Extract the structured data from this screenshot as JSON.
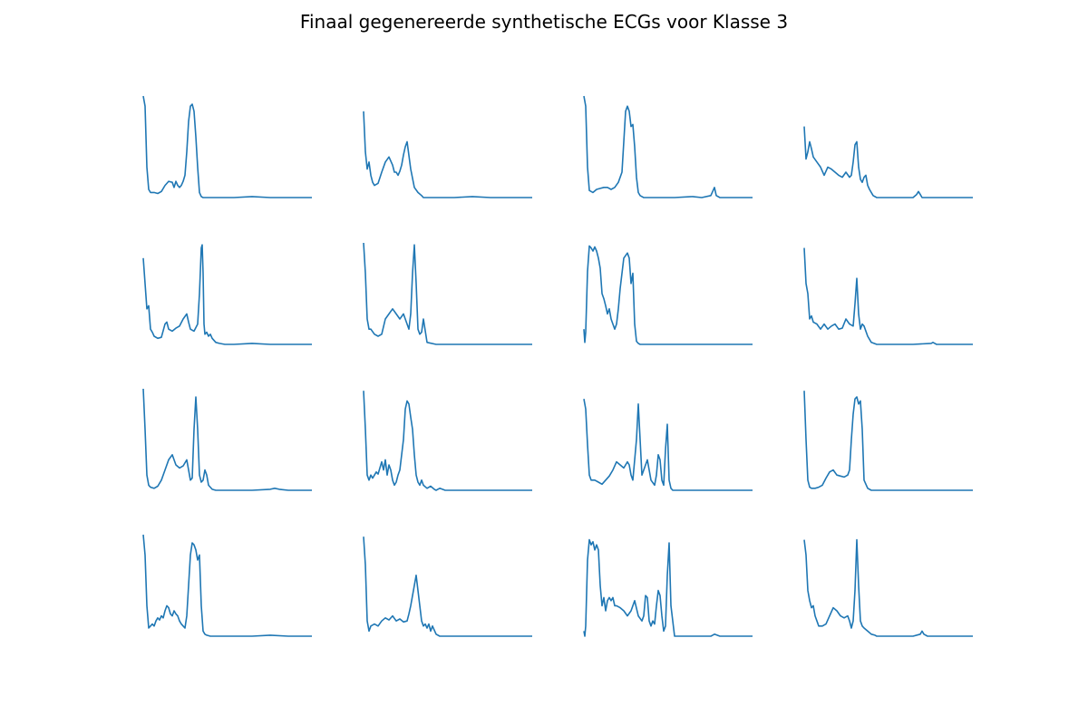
{
  "title": "Finaal gegenereerde synthetische ECGs voor Klasse 3",
  "line_color": "#1f77b4",
  "chart_data": {
    "type": "line",
    "title": "Finaal gegenereerde synthetische ECGs voor Klasse 3",
    "grid": false,
    "axes_visible": false,
    "rows": 4,
    "cols": 4,
    "ylim": [
      0,
      1
    ],
    "x_range": [
      0,
      186
    ],
    "panels": [
      {
        "x": [
          0,
          2,
          4,
          6,
          8,
          12,
          16,
          20,
          24,
          28,
          32,
          34,
          36,
          38,
          40,
          42,
          44,
          46,
          48,
          50,
          52,
          54,
          56,
          58,
          60,
          62,
          64,
          66,
          70,
          80,
          100,
          120,
          140,
          160,
          186
        ],
        "y": [
          1.0,
          0.9,
          0.3,
          0.08,
          0.05,
          0.05,
          0.04,
          0.06,
          0.12,
          0.16,
          0.15,
          0.1,
          0.16,
          0.12,
          0.1,
          0.12,
          0.16,
          0.22,
          0.45,
          0.75,
          0.9,
          0.92,
          0.85,
          0.6,
          0.3,
          0.05,
          0.01,
          0.0,
          0.0,
          0.0,
          0.0,
          0.01,
          0.0,
          0.0,
          0.0
        ]
      },
      {
        "x": [
          0,
          2,
          4,
          6,
          8,
          10,
          12,
          16,
          20,
          24,
          28,
          32,
          34,
          36,
          38,
          40,
          42,
          44,
          46,
          48,
          52,
          56,
          60,
          64,
          66,
          70,
          80,
          100,
          120,
          140,
          160,
          186
        ],
        "y": [
          0.85,
          0.45,
          0.28,
          0.35,
          0.22,
          0.15,
          0.12,
          0.14,
          0.25,
          0.35,
          0.4,
          0.32,
          0.25,
          0.25,
          0.22,
          0.26,
          0.32,
          0.42,
          0.5,
          0.55,
          0.28,
          0.1,
          0.05,
          0.02,
          0.0,
          0.0,
          0.0,
          0.0,
          0.01,
          0.0,
          0.0,
          0.0
        ]
      },
      {
        "x": [
          0,
          2,
          4,
          6,
          10,
          14,
          18,
          22,
          26,
          30,
          34,
          38,
          42,
          44,
          46,
          48,
          50,
          52,
          54,
          56,
          58,
          60,
          62,
          64,
          66,
          70,
          80,
          100,
          120,
          130,
          140,
          142,
          144,
          146,
          150,
          160,
          186
        ],
        "y": [
          1.0,
          0.9,
          0.3,
          0.07,
          0.05,
          0.08,
          0.09,
          0.1,
          0.1,
          0.08,
          0.1,
          0.15,
          0.25,
          0.55,
          0.85,
          0.9,
          0.85,
          0.7,
          0.72,
          0.5,
          0.2,
          0.05,
          0.02,
          0.01,
          0.0,
          0.0,
          0.0,
          0.0,
          0.01,
          0.0,
          0.02,
          0.06,
          0.1,
          0.02,
          0.0,
          0.0,
          0.0
        ]
      },
      {
        "x": [
          0,
          2,
          4,
          6,
          8,
          10,
          14,
          18,
          22,
          26,
          30,
          34,
          38,
          42,
          46,
          50,
          52,
          54,
          56,
          58,
          60,
          62,
          64,
          66,
          68,
          70,
          72,
          76,
          80,
          100,
          120,
          124,
          126,
          128,
          130,
          140,
          160,
          186
        ],
        "y": [
          0.7,
          0.38,
          0.45,
          0.55,
          0.48,
          0.4,
          0.35,
          0.3,
          0.22,
          0.3,
          0.28,
          0.25,
          0.22,
          0.2,
          0.25,
          0.2,
          0.22,
          0.35,
          0.52,
          0.55,
          0.3,
          0.18,
          0.15,
          0.2,
          0.22,
          0.12,
          0.08,
          0.02,
          0.0,
          0.0,
          0.0,
          0.03,
          0.06,
          0.03,
          0.0,
          0.0,
          0.0,
          0.0
        ]
      },
      {
        "x": [
          0,
          2,
          4,
          6,
          8,
          10,
          12,
          16,
          20,
          24,
          26,
          28,
          32,
          36,
          40,
          44,
          48,
          50,
          52,
          56,
          60,
          62,
          64,
          65,
          66,
          67,
          68,
          70,
          72,
          74,
          76,
          80,
          84,
          90,
          100,
          120,
          140,
          160,
          186
        ],
        "y": [
          0.85,
          0.6,
          0.35,
          0.38,
          0.15,
          0.12,
          0.08,
          0.06,
          0.07,
          0.2,
          0.22,
          0.15,
          0.13,
          0.16,
          0.18,
          0.25,
          0.3,
          0.22,
          0.15,
          0.13,
          0.2,
          0.5,
          0.95,
          0.98,
          0.7,
          0.2,
          0.1,
          0.12,
          0.08,
          0.1,
          0.06,
          0.02,
          0.01,
          0.0,
          0.0,
          0.01,
          0.0,
          0.0,
          0.0
        ]
      },
      {
        "x": [
          0,
          2,
          4,
          6,
          8,
          12,
          16,
          20,
          24,
          28,
          32,
          36,
          40,
          44,
          48,
          50,
          52,
          54,
          56,
          58,
          60,
          62,
          64,
          66,
          70,
          80,
          100,
          120,
          140,
          160,
          186
        ],
        "y": [
          1.0,
          0.7,
          0.25,
          0.15,
          0.15,
          0.1,
          0.08,
          0.1,
          0.25,
          0.3,
          0.35,
          0.3,
          0.25,
          0.3,
          0.2,
          0.15,
          0.3,
          0.7,
          0.98,
          0.6,
          0.15,
          0.1,
          0.12,
          0.25,
          0.02,
          0.0,
          0.0,
          0.0,
          0.0,
          0.0,
          0.0
        ]
      },
      {
        "x": [
          0,
          1,
          2,
          4,
          6,
          8,
          10,
          12,
          14,
          16,
          18,
          20,
          22,
          24,
          26,
          28,
          30,
          32,
          34,
          36,
          38,
          40,
          44,
          48,
          50,
          52,
          54,
          56,
          58,
          60,
          62,
          64,
          66,
          70,
          80,
          100,
          120,
          140,
          160,
          186
        ],
        "y": [
          0.15,
          0.02,
          0.12,
          0.72,
          0.97,
          0.95,
          0.92,
          0.96,
          0.92,
          0.85,
          0.75,
          0.5,
          0.45,
          0.38,
          0.3,
          0.35,
          0.25,
          0.2,
          0.15,
          0.2,
          0.35,
          0.55,
          0.85,
          0.9,
          0.85,
          0.6,
          0.7,
          0.2,
          0.03,
          0.01,
          0.0,
          0.0,
          0.0,
          0.0,
          0.0,
          0.0,
          0.0,
          0.0,
          0.0,
          0.0
        ]
      },
      {
        "x": [
          0,
          2,
          4,
          6,
          8,
          10,
          14,
          18,
          22,
          26,
          30,
          34,
          38,
          42,
          46,
          50,
          54,
          56,
          58,
          60,
          62,
          64,
          66,
          70,
          74,
          80,
          100,
          120,
          140,
          142,
          144,
          146,
          150,
          160,
          186
        ],
        "y": [
          0.95,
          0.6,
          0.5,
          0.25,
          0.28,
          0.22,
          0.2,
          0.15,
          0.2,
          0.15,
          0.18,
          0.2,
          0.15,
          0.16,
          0.25,
          0.2,
          0.18,
          0.4,
          0.65,
          0.3,
          0.15,
          0.2,
          0.18,
          0.08,
          0.02,
          0.0,
          0.0,
          0.0,
          0.01,
          0.02,
          0.01,
          0.0,
          0.0,
          0.0,
          0.0
        ]
      },
      {
        "x": [
          0,
          2,
          4,
          6,
          8,
          12,
          16,
          20,
          24,
          28,
          32,
          34,
          36,
          40,
          44,
          48,
          50,
          52,
          54,
          56,
          58,
          60,
          62,
          64,
          66,
          68,
          70,
          72,
          76,
          80,
          90,
          100,
          120,
          140,
          145,
          150,
          160,
          186
        ],
        "y": [
          1.0,
          0.6,
          0.15,
          0.05,
          0.03,
          0.02,
          0.04,
          0.1,
          0.2,
          0.3,
          0.35,
          0.3,
          0.25,
          0.22,
          0.24,
          0.3,
          0.2,
          0.1,
          0.12,
          0.6,
          0.92,
          0.6,
          0.15,
          0.08,
          0.1,
          0.2,
          0.15,
          0.05,
          0.01,
          0.0,
          0.0,
          0.0,
          0.0,
          0.01,
          0.02,
          0.01,
          0.0,
          0.0
        ]
      },
      {
        "x": [
          0,
          2,
          4,
          6,
          8,
          10,
          12,
          14,
          16,
          18,
          20,
          22,
          24,
          26,
          28,
          30,
          32,
          34,
          36,
          38,
          40,
          44,
          46,
          48,
          50,
          52,
          54,
          56,
          58,
          60,
          62,
          64,
          66,
          70,
          74,
          78,
          80,
          84,
          90,
          100,
          120,
          140,
          160,
          186
        ],
        "y": [
          0.98,
          0.6,
          0.15,
          0.1,
          0.15,
          0.12,
          0.15,
          0.18,
          0.16,
          0.22,
          0.28,
          0.2,
          0.3,
          0.15,
          0.25,
          0.2,
          0.1,
          0.05,
          0.08,
          0.15,
          0.2,
          0.5,
          0.8,
          0.88,
          0.85,
          0.72,
          0.6,
          0.35,
          0.15,
          0.08,
          0.05,
          0.1,
          0.05,
          0.02,
          0.04,
          0.01,
          0.0,
          0.02,
          0.0,
          0.0,
          0.0,
          0.0,
          0.0,
          0.0
        ]
      },
      {
        "x": [
          0,
          2,
          4,
          6,
          8,
          12,
          16,
          20,
          24,
          28,
          32,
          36,
          40,
          44,
          48,
          50,
          52,
          54,
          56,
          58,
          60,
          62,
          64,
          66,
          70,
          74,
          78,
          80,
          82,
          84,
          86,
          88,
          90,
          92,
          94,
          96,
          98,
          100,
          110,
          120,
          140,
          160,
          186
        ],
        "y": [
          0.9,
          0.8,
          0.45,
          0.15,
          0.1,
          0.1,
          0.08,
          0.06,
          0.1,
          0.14,
          0.2,
          0.28,
          0.25,
          0.22,
          0.28,
          0.25,
          0.15,
          0.1,
          0.3,
          0.5,
          0.85,
          0.5,
          0.15,
          0.2,
          0.3,
          0.1,
          0.05,
          0.15,
          0.35,
          0.3,
          0.1,
          0.05,
          0.4,
          0.65,
          0.1,
          0.02,
          0.0,
          0.0,
          0.0,
          0.0,
          0.0,
          0.0,
          0.0
        ]
      },
      {
        "x": [
          0,
          2,
          4,
          6,
          8,
          12,
          16,
          20,
          24,
          28,
          32,
          36,
          40,
          44,
          48,
          50,
          52,
          54,
          56,
          58,
          60,
          62,
          64,
          66,
          70,
          74,
          80,
          100,
          120,
          140,
          160,
          186
        ],
        "y": [
          0.98,
          0.5,
          0.1,
          0.03,
          0.02,
          0.02,
          0.03,
          0.05,
          0.12,
          0.18,
          0.2,
          0.15,
          0.14,
          0.13,
          0.15,
          0.2,
          0.5,
          0.75,
          0.9,
          0.92,
          0.85,
          0.88,
          0.6,
          0.1,
          0.02,
          0.0,
          0.0,
          0.0,
          0.0,
          0.0,
          0.0,
          0.0
        ]
      },
      {
        "x": [
          0,
          2,
          4,
          6,
          8,
          10,
          12,
          14,
          16,
          18,
          20,
          22,
          24,
          26,
          28,
          30,
          32,
          34,
          36,
          38,
          40,
          42,
          44,
          46,
          48,
          50,
          52,
          54,
          56,
          58,
          60,
          62,
          64,
          66,
          68,
          70,
          74,
          80,
          100,
          120,
          140,
          160,
          186
        ],
        "y": [
          1.0,
          0.8,
          0.3,
          0.08,
          0.1,
          0.12,
          0.1,
          0.15,
          0.18,
          0.16,
          0.2,
          0.18,
          0.25,
          0.3,
          0.28,
          0.22,
          0.2,
          0.25,
          0.22,
          0.2,
          0.15,
          0.12,
          0.1,
          0.08,
          0.2,
          0.5,
          0.8,
          0.92,
          0.9,
          0.85,
          0.75,
          0.8,
          0.3,
          0.05,
          0.02,
          0.01,
          0.0,
          0.0,
          0.0,
          0.0,
          0.01,
          0.0,
          0.0
        ]
      },
      {
        "x": [
          0,
          2,
          4,
          6,
          8,
          12,
          16,
          20,
          24,
          28,
          32,
          36,
          40,
          44,
          48,
          50,
          52,
          54,
          56,
          58,
          60,
          62,
          64,
          66,
          68,
          70,
          72,
          74,
          76,
          80,
          84,
          88,
          90,
          100,
          120,
          140,
          160,
          186
        ],
        "y": [
          0.98,
          0.7,
          0.15,
          0.05,
          0.1,
          0.12,
          0.1,
          0.15,
          0.18,
          0.16,
          0.2,
          0.15,
          0.17,
          0.14,
          0.15,
          0.22,
          0.3,
          0.4,
          0.5,
          0.6,
          0.45,
          0.3,
          0.15,
          0.1,
          0.12,
          0.08,
          0.12,
          0.05,
          0.1,
          0.02,
          0.0,
          0.0,
          0.0,
          0.0,
          0.0,
          0.0,
          0.0,
          0.0
        ]
      },
      {
        "x": [
          0,
          1,
          2,
          4,
          6,
          8,
          10,
          12,
          14,
          16,
          18,
          20,
          22,
          24,
          26,
          28,
          30,
          32,
          34,
          36,
          40,
          44,
          48,
          52,
          56,
          60,
          64,
          66,
          68,
          70,
          72,
          74,
          76,
          78,
          80,
          82,
          84,
          86,
          88,
          90,
          92,
          94,
          96,
          100,
          120,
          140,
          142,
          144,
          150,
          160,
          186
        ],
        "y": [
          0.05,
          0.0,
          0.1,
          0.75,
          0.95,
          0.9,
          0.93,
          0.85,
          0.9,
          0.85,
          0.5,
          0.3,
          0.38,
          0.25,
          0.35,
          0.38,
          0.35,
          0.38,
          0.3,
          0.3,
          0.28,
          0.25,
          0.2,
          0.25,
          0.35,
          0.2,
          0.15,
          0.2,
          0.4,
          0.38,
          0.15,
          0.1,
          0.15,
          0.12,
          0.3,
          0.45,
          0.4,
          0.2,
          0.05,
          0.1,
          0.6,
          0.92,
          0.3,
          0.0,
          0.0,
          0.0,
          0.01,
          0.02,
          0.0,
          0.0,
          0.0
        ]
      },
      {
        "x": [
          0,
          2,
          4,
          6,
          8,
          10,
          12,
          14,
          16,
          20,
          24,
          28,
          32,
          36,
          40,
          44,
          48,
          50,
          52,
          54,
          56,
          58,
          60,
          62,
          64,
          66,
          70,
          74,
          78,
          80,
          84,
          100,
          120,
          128,
          130,
          132,
          136,
          140,
          160,
          186
        ],
        "y": [
          0.95,
          0.8,
          0.45,
          0.35,
          0.28,
          0.3,
          0.2,
          0.15,
          0.1,
          0.1,
          0.12,
          0.2,
          0.28,
          0.25,
          0.2,
          0.18,
          0.2,
          0.15,
          0.08,
          0.15,
          0.45,
          0.95,
          0.5,
          0.15,
          0.1,
          0.08,
          0.05,
          0.02,
          0.01,
          0.0,
          0.0,
          0.0,
          0.0,
          0.02,
          0.05,
          0.02,
          0.0,
          0.0,
          0.0,
          0.0
        ]
      }
    ]
  }
}
